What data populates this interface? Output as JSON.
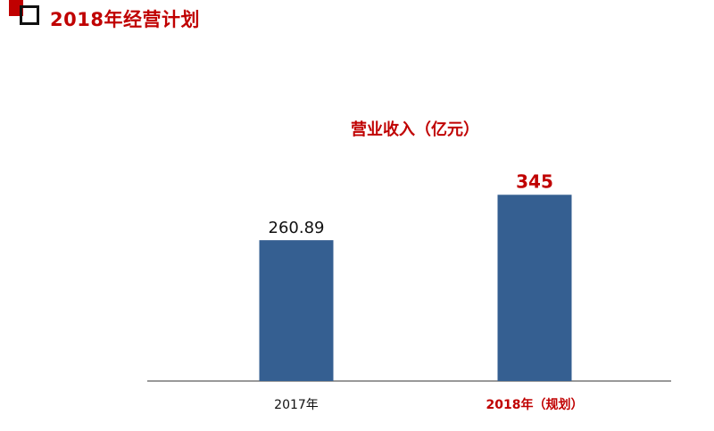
{
  "header": {
    "title": "2018年经营计划"
  },
  "colors": {
    "accent": "#c00000",
    "bar": "#355f91",
    "axis": "#333333",
    "text": "#111111"
  },
  "chart_data": {
    "type": "bar",
    "title": "营业收入（亿元）",
    "categories": [
      "2017年",
      "2018年（规划）"
    ],
    "values": [
      260.89,
      345
    ],
    "value_labels": [
      "260.89",
      "345"
    ],
    "highlight_index": 1,
    "ylim": [
      0,
      400
    ],
    "grid": false,
    "xlabel": "",
    "ylabel": ""
  }
}
